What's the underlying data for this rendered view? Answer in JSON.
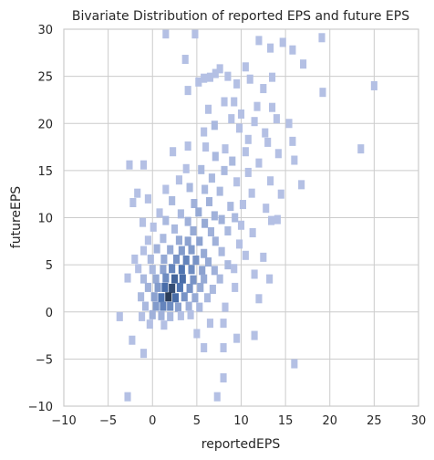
{
  "chart_data": {
    "type": "heatmap",
    "title": "Bivariate Distribution of reported EPS and future EPS",
    "xlabel": "reportedEPS",
    "ylabel": "futureEPS",
    "xlim": [
      -10,
      30
    ],
    "ylim": [
      -10,
      30
    ],
    "xticks": [
      -10,
      -5,
      0,
      5,
      10,
      15,
      20,
      25,
      30
    ],
    "yticks": [
      -10,
      -5,
      0,
      5,
      10,
      15,
      20,
      25,
      30
    ],
    "xtick_labels": [
      "−10",
      "−5",
      "0",
      "5",
      "10",
      "15",
      "20",
      "25",
      "30"
    ],
    "ytick_labels": [
      "−10",
      "−5",
      "0",
      "5",
      "10",
      "15",
      "20",
      "25",
      "30"
    ],
    "grid": true,
    "bin_width_x": 0.73,
    "bin_width_y": 0.97,
    "color_low": "#b4c0e4",
    "color_mid": "#4c72b0",
    "color_high": "#1f2b3d",
    "max_count": 20,
    "cells": [
      [
        1.5,
        29.5,
        1
      ],
      [
        4.8,
        29.5,
        1
      ],
      [
        12.0,
        28.8,
        1
      ],
      [
        14.7,
        28.6,
        1
      ],
      [
        19.1,
        29.1,
        1
      ],
      [
        13.3,
        28.0,
        1
      ],
      [
        15.8,
        27.8,
        1
      ],
      [
        3.7,
        26.8,
        1
      ],
      [
        17.0,
        26.3,
        1
      ],
      [
        10.5,
        26.0,
        1
      ],
      [
        7.6,
        25.8,
        1
      ],
      [
        7.1,
        25.3,
        1
      ],
      [
        8.5,
        25.0,
        1
      ],
      [
        11.0,
        24.7,
        1
      ],
      [
        13.5,
        24.9,
        1
      ],
      [
        25.0,
        24.0,
        1
      ],
      [
        5.2,
        24.4,
        1
      ],
      [
        5.8,
        24.8,
        1
      ],
      [
        6.5,
        24.9,
        1
      ],
      [
        9.5,
        24.2,
        1
      ],
      [
        4.0,
        23.5,
        1
      ],
      [
        12.5,
        23.7,
        1
      ],
      [
        19.2,
        23.3,
        1
      ],
      [
        8.1,
        22.3,
        1
      ],
      [
        9.2,
        22.3,
        1
      ],
      [
        11.8,
        21.8,
        1
      ],
      [
        13.5,
        21.7,
        1
      ],
      [
        10.0,
        21.0,
        1
      ],
      [
        6.3,
        21.5,
        1
      ],
      [
        8.9,
        20.5,
        1
      ],
      [
        11.5,
        20.2,
        1
      ],
      [
        14.0,
        20.5,
        1
      ],
      [
        15.4,
        20.0,
        1
      ],
      [
        7.0,
        19.8,
        2
      ],
      [
        9.8,
        19.5,
        1
      ],
      [
        12.7,
        19.0,
        1
      ],
      [
        5.8,
        19.1,
        1
      ],
      [
        10.8,
        18.3,
        1
      ],
      [
        13.0,
        18.0,
        1
      ],
      [
        15.8,
        18.1,
        1
      ],
      [
        4.0,
        17.6,
        1
      ],
      [
        6.0,
        17.5,
        1
      ],
      [
        8.2,
        17.3,
        1
      ],
      [
        10.5,
        17.0,
        1
      ],
      [
        14.2,
        16.8,
        1
      ],
      [
        2.3,
        17.0,
        1
      ],
      [
        23.5,
        17.3,
        1
      ],
      [
        7.1,
        16.5,
        2
      ],
      [
        9.0,
        16.0,
        2
      ],
      [
        12.0,
        15.8,
        1
      ],
      [
        16.0,
        16.1,
        1
      ],
      [
        -2.6,
        15.6,
        1
      ],
      [
        -1.0,
        15.6,
        1
      ],
      [
        3.8,
        15.2,
        1
      ],
      [
        5.5,
        15.1,
        2
      ],
      [
        8.1,
        15.0,
        2
      ],
      [
        10.8,
        14.8,
        1
      ],
      [
        6.7,
        14.2,
        2
      ],
      [
        9.5,
        13.8,
        1
      ],
      [
        13.3,
        13.9,
        1
      ],
      [
        16.8,
        13.5,
        1
      ],
      [
        3.0,
        14.0,
        1
      ],
      [
        1.5,
        13.0,
        1
      ],
      [
        4.2,
        13.2,
        2
      ],
      [
        5.9,
        13.0,
        2
      ],
      [
        7.6,
        12.8,
        2
      ],
      [
        11.2,
        12.6,
        1
      ],
      [
        14.5,
        12.5,
        1
      ],
      [
        -1.7,
        12.6,
        1
      ],
      [
        -2.2,
        11.6,
        1
      ],
      [
        -0.5,
        12.0,
        1
      ],
      [
        2.2,
        11.8,
        2
      ],
      [
        4.7,
        11.5,
        3
      ],
      [
        6.4,
        11.7,
        3
      ],
      [
        8.8,
        11.2,
        2
      ],
      [
        10.2,
        11.4,
        1
      ],
      [
        12.8,
        11.0,
        1
      ],
      [
        0.8,
        10.5,
        1
      ],
      [
        3.2,
        10.4,
        2
      ],
      [
        5.2,
        10.6,
        4
      ],
      [
        7.0,
        10.2,
        3
      ],
      [
        9.3,
        10.0,
        2
      ],
      [
        -1.1,
        9.5,
        1
      ],
      [
        1.5,
        9.7,
        2
      ],
      [
        4.0,
        9.6,
        3
      ],
      [
        5.9,
        9.4,
        4
      ],
      [
        7.8,
        9.8,
        3
      ],
      [
        10.0,
        9.2,
        1
      ],
      [
        14.1,
        9.8,
        1
      ],
      [
        13.4,
        9.7,
        1
      ],
      [
        0.1,
        9.0,
        1
      ],
      [
        2.5,
        8.8,
        2
      ],
      [
        4.6,
        8.6,
        4
      ],
      [
        6.6,
        8.5,
        3
      ],
      [
        8.5,
        8.6,
        2
      ],
      [
        11.3,
        8.4,
        1
      ],
      [
        -0.5,
        7.6,
        1
      ],
      [
        1.2,
        7.8,
        2
      ],
      [
        3.0,
        7.6,
        4
      ],
      [
        4.0,
        7.5,
        5
      ],
      [
        5.3,
        7.5,
        5
      ],
      [
        7.1,
        7.5,
        3
      ],
      [
        9.8,
        7.2,
        1
      ],
      [
        -1.0,
        6.5,
        1
      ],
      [
        0.5,
        6.7,
        3
      ],
      [
        2.0,
        6.6,
        4
      ],
      [
        3.3,
        6.5,
        6
      ],
      [
        4.4,
        6.6,
        6
      ],
      [
        5.8,
        6.2,
        4
      ],
      [
        7.8,
        6.4,
        2
      ],
      [
        10.5,
        6.0,
        1
      ],
      [
        -2.0,
        5.6,
        1
      ],
      [
        -0.2,
        5.6,
        2
      ],
      [
        1.3,
        5.6,
        4
      ],
      [
        2.7,
        5.6,
        7
      ],
      [
        3.8,
        5.5,
        9
      ],
      [
        4.9,
        5.5,
        7
      ],
      [
        6.3,
        5.3,
        4
      ],
      [
        8.5,
        5.0,
        2
      ],
      [
        12.5,
        5.8,
        1
      ],
      [
        -1.6,
        4.6,
        1
      ],
      [
        0.0,
        4.5,
        2
      ],
      [
        1.2,
        4.5,
        5
      ],
      [
        2.2,
        4.6,
        9
      ],
      [
        3.3,
        4.5,
        11
      ],
      [
        4.4,
        4.5,
        8
      ],
      [
        5.6,
        4.4,
        5
      ],
      [
        7.0,
        4.4,
        3
      ],
      [
        9.2,
        4.6,
        1
      ],
      [
        11.5,
        4.0,
        1
      ],
      [
        -2.8,
        3.6,
        1
      ],
      [
        -1.0,
        3.5,
        2
      ],
      [
        0.4,
        3.5,
        4
      ],
      [
        1.5,
        3.6,
        8
      ],
      [
        2.5,
        3.5,
        13
      ],
      [
        3.4,
        3.5,
        12
      ],
      [
        4.6,
        3.4,
        7
      ],
      [
        5.8,
        3.5,
        4
      ],
      [
        7.6,
        3.5,
        2
      ],
      [
        13.2,
        3.5,
        1
      ],
      [
        -0.5,
        2.6,
        3
      ],
      [
        0.6,
        2.6,
        6
      ],
      [
        1.4,
        2.6,
        12
      ],
      [
        2.2,
        2.5,
        16
      ],
      [
        3.1,
        2.6,
        11
      ],
      [
        4.2,
        2.5,
        7
      ],
      [
        5.4,
        2.6,
        4
      ],
      [
        6.8,
        2.4,
        2
      ],
      [
        9.3,
        2.6,
        1
      ],
      [
        -1.3,
        1.6,
        2
      ],
      [
        0.2,
        1.6,
        5
      ],
      [
        1.0,
        1.5,
        11
      ],
      [
        1.8,
        1.6,
        18
      ],
      [
        2.6,
        1.5,
        12
      ],
      [
        3.6,
        1.6,
        7
      ],
      [
        4.8,
        1.5,
        4
      ],
      [
        6.2,
        1.5,
        2
      ],
      [
        12.0,
        1.4,
        1
      ],
      [
        -0.8,
        0.6,
        2
      ],
      [
        0.4,
        0.6,
        6
      ],
      [
        1.2,
        0.6,
        9
      ],
      [
        2.0,
        0.6,
        8
      ],
      [
        2.9,
        0.5,
        5
      ],
      [
        4.1,
        0.6,
        3
      ],
      [
        5.3,
        0.5,
        2
      ],
      [
        8.2,
        0.5,
        1
      ],
      [
        -3.7,
        -0.5,
        1
      ],
      [
        -1.2,
        -0.5,
        1
      ],
      [
        0.0,
        -0.3,
        3
      ],
      [
        1.0,
        -0.4,
        3
      ],
      [
        2.0,
        -0.5,
        2
      ],
      [
        3.2,
        -0.4,
        1
      ],
      [
        4.3,
        -0.3,
        1
      ],
      [
        -0.3,
        -1.3,
        1
      ],
      [
        1.3,
        -1.4,
        1
      ],
      [
        6.5,
        -1.2,
        1
      ],
      [
        8.0,
        -1.2,
        1
      ],
      [
        -2.3,
        -3.0,
        1
      ],
      [
        5.0,
        -2.3,
        1
      ],
      [
        9.5,
        -2.8,
        1
      ],
      [
        11.5,
        -2.5,
        1
      ],
      [
        5.8,
        -3.8,
        1
      ],
      [
        8.0,
        -3.8,
        1
      ],
      [
        -1.0,
        -4.4,
        1
      ],
      [
        16.0,
        -5.5,
        1
      ],
      [
        8.0,
        -7.0,
        1
      ],
      [
        -2.8,
        -9.0,
        1
      ],
      [
        7.3,
        -9.0,
        1
      ]
    ]
  }
}
